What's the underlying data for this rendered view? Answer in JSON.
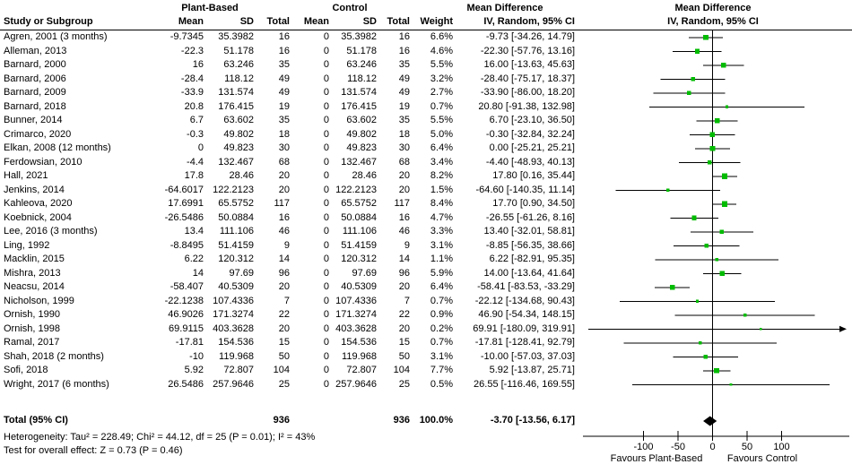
{
  "table": {
    "header": {
      "group1": "Plant-Based",
      "group2": "Control",
      "study": "Study or Subgroup",
      "mean": "Mean",
      "sd": "SD",
      "total": "Total",
      "weight": "Weight",
      "md_title": "Mean Difference",
      "md_method": "IV, Random, 95% CI"
    },
    "total_row": {
      "label": "Total (95% CI)",
      "n1": "936",
      "n2": "936",
      "weight": "100.0%",
      "ci_text": "-3.70 [-13.56, 6.17]"
    },
    "footnotes": {
      "heterogeneity": "Heterogeneity: Tau² = 228.49; Chi² = 44.12, df = 25 (P = 0.01); I² = 43%",
      "overall_effect": "Test for overall effect: Z = 0.73 (P = 0.46)"
    }
  },
  "chart_data": {
    "type": "forest",
    "title": "Mean Difference",
    "method": "IV, Random, 95% CI",
    "axis": {
      "ticks": [
        -100,
        -50,
        0,
        50,
        100
      ],
      "favours_left": "Favours Plant-Based",
      "favours_right": "Favours Control"
    },
    "colors": {
      "marker": "#00bb00",
      "diamond": "#000000",
      "line": "#000000"
    },
    "studies": [
      {
        "name": "Agren, 2001 (3 months)",
        "mean1": "-9.7345",
        "sd1": "35.3982",
        "n1": "16",
        "mean2": "0",
        "sd2": "35.3982",
        "n2": "16",
        "w": 6.6,
        "md": -9.73,
        "lo": -34.26,
        "hi": 14.79,
        "ci_text": "-9.73 [-34.26, 14.79]"
      },
      {
        "name": "Alleman, 2013",
        "mean1": "-22.3",
        "sd1": "51.178",
        "n1": "16",
        "mean2": "0",
        "sd2": "51.178",
        "n2": "16",
        "w": 4.6,
        "md": -22.3,
        "lo": -57.76,
        "hi": 13.16,
        "ci_text": "-22.30 [-57.76, 13.16]"
      },
      {
        "name": "Barnard, 2000",
        "mean1": "16",
        "sd1": "63.246",
        "n1": "35",
        "mean2": "0",
        "sd2": "63.246",
        "n2": "35",
        "w": 5.5,
        "md": 16.0,
        "lo": -13.63,
        "hi": 45.63,
        "ci_text": "16.00 [-13.63, 45.63]"
      },
      {
        "name": "Barnard, 2006",
        "mean1": "-28.4",
        "sd1": "118.12",
        "n1": "49",
        "mean2": "0",
        "sd2": "118.12",
        "n2": "49",
        "w": 3.2,
        "md": -28.4,
        "lo": -75.17,
        "hi": 18.37,
        "ci_text": "-28.40 [-75.17, 18.37]"
      },
      {
        "name": "Barnard, 2009",
        "mean1": "-33.9",
        "sd1": "131.574",
        "n1": "49",
        "mean2": "0",
        "sd2": "131.574",
        "n2": "49",
        "w": 2.7,
        "md": -33.9,
        "lo": -86.0,
        "hi": 18.2,
        "ci_text": "-33.90 [-86.00, 18.20]"
      },
      {
        "name": "Barnard, 2018",
        "mean1": "20.8",
        "sd1": "176.415",
        "n1": "19",
        "mean2": "0",
        "sd2": "176.415",
        "n2": "19",
        "w": 0.7,
        "md": 20.8,
        "lo": -91.38,
        "hi": 132.98,
        "ci_text": "20.80 [-91.38, 132.98]"
      },
      {
        "name": "Bunner, 2014",
        "mean1": "6.7",
        "sd1": "63.602",
        "n1": "35",
        "mean2": "0",
        "sd2": "63.602",
        "n2": "35",
        "w": 5.5,
        "md": 6.7,
        "lo": -23.1,
        "hi": 36.5,
        "ci_text": "6.70 [-23.10, 36.50]"
      },
      {
        "name": "Crimarco, 2020",
        "mean1": "-0.3",
        "sd1": "49.802",
        "n1": "18",
        "mean2": "0",
        "sd2": "49.802",
        "n2": "18",
        "w": 5.0,
        "md": -0.3,
        "lo": -32.84,
        "hi": 32.24,
        "ci_text": "-0.30 [-32.84, 32.24]"
      },
      {
        "name": "Elkan, 2008 (12 months)",
        "mean1": "0",
        "sd1": "49.823",
        "n1": "30",
        "mean2": "0",
        "sd2": "49.823",
        "n2": "30",
        "w": 6.4,
        "md": 0.0,
        "lo": -25.21,
        "hi": 25.21,
        "ci_text": "0.00 [-25.21, 25.21]"
      },
      {
        "name": "Ferdowsian, 2010",
        "mean1": "-4.4",
        "sd1": "132.467",
        "n1": "68",
        "mean2": "0",
        "sd2": "132.467",
        "n2": "68",
        "w": 3.4,
        "md": -4.4,
        "lo": -48.93,
        "hi": 40.13,
        "ci_text": "-4.40 [-48.93, 40.13]"
      },
      {
        "name": "Hall, 2021",
        "mean1": "17.8",
        "sd1": "28.46",
        "n1": "20",
        "mean2": "0",
        "sd2": "28.46",
        "n2": "20",
        "w": 8.2,
        "md": 17.8,
        "lo": 0.16,
        "hi": 35.44,
        "ci_text": "17.80 [0.16, 35.44]"
      },
      {
        "name": "Jenkins, 2014",
        "mean1": "-64.6017",
        "sd1": "122.2123",
        "n1": "20",
        "mean2": "0",
        "sd2": "122.2123",
        "n2": "20",
        "w": 1.5,
        "md": -64.6,
        "lo": -140.35,
        "hi": 11.14,
        "ci_text": "-64.60 [-140.35, 11.14]"
      },
      {
        "name": "Kahleova, 2020",
        "mean1": "17.6991",
        "sd1": "65.5752",
        "n1": "117",
        "mean2": "0",
        "sd2": "65.5752",
        "n2": "117",
        "w": 8.4,
        "md": 17.7,
        "lo": 0.9,
        "hi": 34.5,
        "ci_text": "17.70 [0.90, 34.50]"
      },
      {
        "name": "Koebnick, 2004",
        "mean1": "-26.5486",
        "sd1": "50.0884",
        "n1": "16",
        "mean2": "0",
        "sd2": "50.0884",
        "n2": "16",
        "w": 4.7,
        "md": -26.55,
        "lo": -61.26,
        "hi": 8.16,
        "ci_text": "-26.55 [-61.26, 8.16]"
      },
      {
        "name": "Lee, 2016 (3 months)",
        "mean1": "13.4",
        "sd1": "111.106",
        "n1": "46",
        "mean2": "0",
        "sd2": "111.106",
        "n2": "46",
        "w": 3.3,
        "md": 13.4,
        "lo": -32.01,
        "hi": 58.81,
        "ci_text": "13.40 [-32.01, 58.81]"
      },
      {
        "name": "Ling, 1992",
        "mean1": "-8.8495",
        "sd1": "51.4159",
        "n1": "9",
        "mean2": "0",
        "sd2": "51.4159",
        "n2": "9",
        "w": 3.1,
        "md": -8.85,
        "lo": -56.35,
        "hi": 38.66,
        "ci_text": "-8.85 [-56.35, 38.66]"
      },
      {
        "name": "Macklin, 2015",
        "mean1": "6.22",
        "sd1": "120.312",
        "n1": "14",
        "mean2": "0",
        "sd2": "120.312",
        "n2": "14",
        "w": 1.1,
        "md": 6.22,
        "lo": -82.91,
        "hi": 95.35,
        "ci_text": "6.22 [-82.91, 95.35]"
      },
      {
        "name": "Mishra, 2013",
        "mean1": "14",
        "sd1": "97.69",
        "n1": "96",
        "mean2": "0",
        "sd2": "97.69",
        "n2": "96",
        "w": 5.9,
        "md": 14.0,
        "lo": -13.64,
        "hi": 41.64,
        "ci_text": "14.00 [-13.64, 41.64]"
      },
      {
        "name": "Neacsu, 2014",
        "mean1": "-58.407",
        "sd1": "40.5309",
        "n1": "20",
        "mean2": "0",
        "sd2": "40.5309",
        "n2": "20",
        "w": 6.4,
        "md": -58.41,
        "lo": -83.53,
        "hi": -33.29,
        "ci_text": "-58.41 [-83.53, -33.29]"
      },
      {
        "name": "Nicholson, 1999",
        "mean1": "-22.1238",
        "sd1": "107.4336",
        "n1": "7",
        "mean2": "0",
        "sd2": "107.4336",
        "n2": "7",
        "w": 0.7,
        "md": -22.12,
        "lo": -134.68,
        "hi": 90.43,
        "ci_text": "-22.12 [-134.68, 90.43]"
      },
      {
        "name": "Ornish, 1990",
        "mean1": "46.9026",
        "sd1": "171.3274",
        "n1": "22",
        "mean2": "0",
        "sd2": "171.3274",
        "n2": "22",
        "w": 0.9,
        "md": 46.9,
        "lo": -54.34,
        "hi": 148.15,
        "ci_text": "46.90 [-54.34, 148.15]"
      },
      {
        "name": "Ornish, 1998",
        "mean1": "69.9115",
        "sd1": "403.3628",
        "n1": "20",
        "mean2": "0",
        "sd2": "403.3628",
        "n2": "20",
        "w": 0.2,
        "md": 69.91,
        "lo": -180.09,
        "hi": 319.91,
        "ci_text": "69.91 [-180.09, 319.91]"
      },
      {
        "name": "Ramal, 2017",
        "mean1": "-17.81",
        "sd1": "154.536",
        "n1": "15",
        "mean2": "0",
        "sd2": "154.536",
        "n2": "15",
        "w": 0.7,
        "md": -17.81,
        "lo": -128.41,
        "hi": 92.79,
        "ci_text": "-17.81 [-128.41, 92.79]"
      },
      {
        "name": "Shah, 2018 (2 months)",
        "mean1": "-10",
        "sd1": "119.968",
        "n1": "50",
        "mean2": "0",
        "sd2": "119.968",
        "n2": "50",
        "w": 3.1,
        "md": -10.0,
        "lo": -57.03,
        "hi": 37.03,
        "ci_text": "-10.00 [-57.03, 37.03]"
      },
      {
        "name": "Sofi, 2018",
        "mean1": "5.92",
        "sd1": "72.807",
        "n1": "104",
        "mean2": "0",
        "sd2": "72.807",
        "n2": "104",
        "w": 7.7,
        "md": 5.92,
        "lo": -13.87,
        "hi": 25.71,
        "ci_text": "5.92 [-13.87, 25.71]"
      },
      {
        "name": "Wright, 2017 (6 months)",
        "mean1": "26.5486",
        "sd1": "257.9646",
        "n1": "25",
        "mean2": "0",
        "sd2": "257.9646",
        "n2": "25",
        "w": 0.5,
        "md": 26.55,
        "lo": -116.46,
        "hi": 169.55,
        "ci_text": "26.55 [-116.46, 169.55]"
      }
    ],
    "total": {
      "md": -3.7,
      "lo": -13.56,
      "hi": 6.17
    }
  }
}
